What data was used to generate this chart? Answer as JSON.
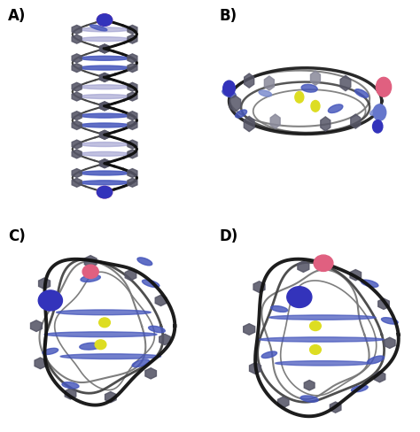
{
  "figure_background": "#ffffff",
  "panel_labels": [
    "A)",
    "B)",
    "C)",
    "D)"
  ],
  "panel_label_fontsize": 12,
  "panel_label_fontweight": "bold",
  "colors": {
    "pink_sphere": "#e06080",
    "blue_sphere": "#3333bb",
    "blue_sphere_light": "#6677cc",
    "yellow_sphere": "#dddd22",
    "backbone_dark": "#111111",
    "backbone_mid": "#444444",
    "backbone_gray": "#777777",
    "base_dark": "#555566",
    "base_gray": "#888899",
    "base_blue": "#4455bb",
    "base_blue_light": "#7788cc",
    "base_blue_pale": "#9999cc"
  }
}
